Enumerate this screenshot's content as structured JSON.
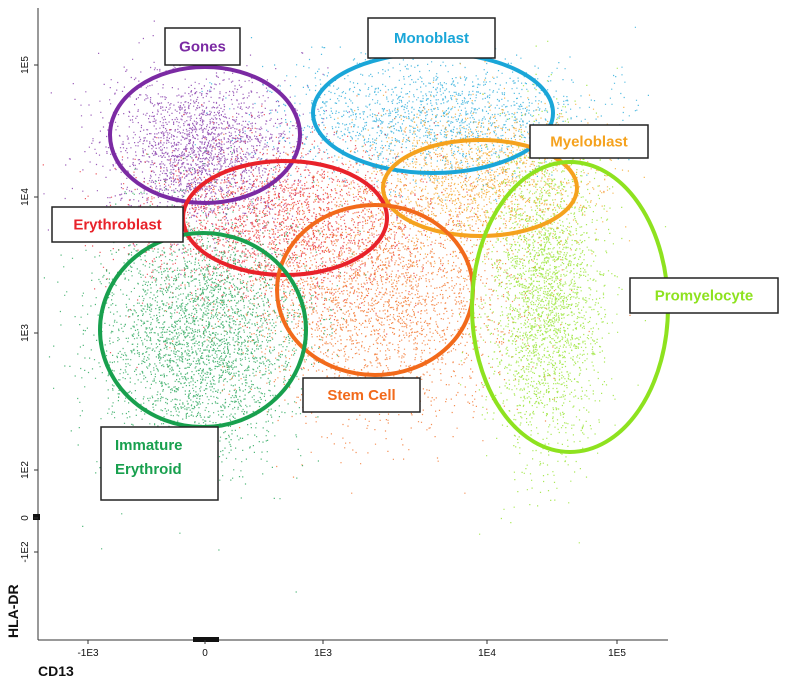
{
  "axes": {
    "x_label": "CD13",
    "y_label": "HLA-DR",
    "x_ticks": [
      "-1E3",
      "0",
      "1E3",
      "1E4",
      "1E5"
    ],
    "y_ticks": [
      "1E5",
      "1E4",
      "1E3",
      "1E2",
      "0",
      "-1E2"
    ]
  },
  "gates": [
    {
      "lines": [
        "Gones"
      ],
      "color": "#7b2aa3"
    },
    {
      "lines": [
        "Monoblast"
      ],
      "color": "#1aa6d8"
    },
    {
      "lines": [
        "Myeloblast"
      ],
      "color": "#f5a21e"
    },
    {
      "lines": [
        "Erythroblast"
      ],
      "color": "#e8222a"
    },
    {
      "lines": [
        "Stem Cell"
      ],
      "color": "#f26a1b"
    },
    {
      "lines": [
        "Immature",
        "Erythroid"
      ],
      "color": "#18a04e"
    },
    {
      "lines": [
        "Promyelocyte"
      ],
      "color": "#8ee21f"
    }
  ]
}
